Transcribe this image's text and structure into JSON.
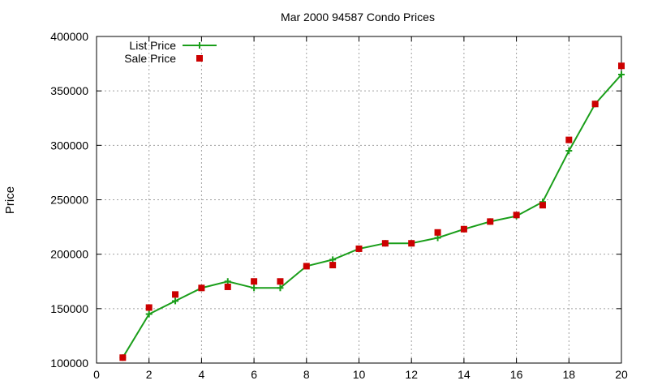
{
  "chart_data": {
    "type": "line",
    "title": "Mar 2000 94587 Condo Prices",
    "xlabel": "",
    "ylabel": "Price",
    "xlim": [
      0,
      20
    ],
    "ylim": [
      100000,
      400000
    ],
    "xticks": [
      0,
      2,
      4,
      6,
      8,
      10,
      12,
      14,
      16,
      18,
      20
    ],
    "yticks": [
      100000,
      150000,
      200000,
      250000,
      300000,
      350000,
      400000
    ],
    "grid": true,
    "legend_position": "top-left",
    "series": [
      {
        "name": "List Price",
        "style": "linespoints",
        "color": "#1a9e1a",
        "marker": "plus",
        "x": [
          1,
          2,
          3,
          4,
          5,
          6,
          7,
          8,
          9,
          10,
          11,
          12,
          13,
          14,
          15,
          16,
          17,
          18,
          19,
          20
        ],
        "y": [
          105000,
          145000,
          157000,
          169000,
          175000,
          169000,
          169000,
          189000,
          195000,
          205000,
          210000,
          210000,
          215000,
          223000,
          230000,
          235000,
          248000,
          295000,
          338000,
          365000
        ]
      },
      {
        "name": "Sale Price",
        "style": "points",
        "color": "#cc0000",
        "marker": "square",
        "x": [
          1,
          2,
          3,
          4,
          5,
          6,
          7,
          8,
          9,
          10,
          11,
          12,
          13,
          14,
          15,
          16,
          17,
          18,
          19,
          20
        ],
        "y": [
          105000,
          151000,
          163000,
          169000,
          170000,
          175000,
          175000,
          189000,
          190000,
          205000,
          210000,
          210000,
          220000,
          223000,
          230000,
          236000,
          245000,
          305000,
          338000,
          373000
        ]
      }
    ]
  }
}
